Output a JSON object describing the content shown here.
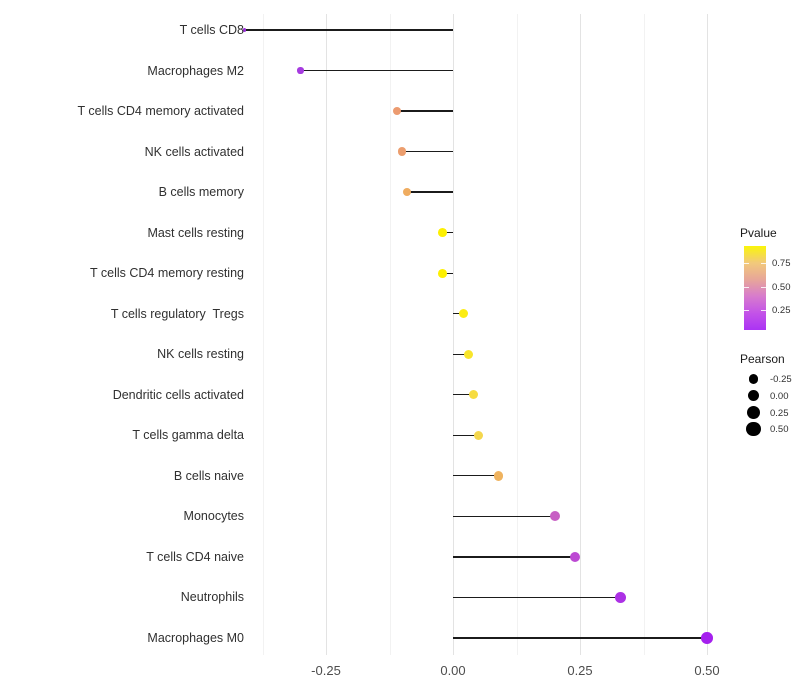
{
  "chart_data": {
    "type": "scatter",
    "subtype": "lollipop",
    "orientation": "horizontal",
    "title": "",
    "xlabel": "",
    "ylabel": "",
    "x_ticks": [
      "-0.25",
      "0.00",
      "0.25",
      "0.50"
    ],
    "x_tick_values": [
      -0.25,
      0.0,
      0.25,
      0.5
    ],
    "xlim": [
      -0.419,
      0.522
    ],
    "grid": "vertical-only",
    "stem_origin": 0.0,
    "categories": [
      "T cells CD8",
      "Macrophages M2",
      "T cells CD4 memory activated",
      "NK cells activated",
      "B cells memory",
      "Mast cells resting",
      "T cells CD4 memory resting",
      "T cells regulatory  Tregs",
      "NK cells resting",
      "Dendritic cells activated",
      "T cells gamma delta",
      "B cells naive",
      "Monocytes",
      "T cells CD4 naive",
      "Neutrophils",
      "Macrophages M0"
    ],
    "series": [
      {
        "name": "Pearson correlation",
        "points": [
          {
            "label": "T cells CD8",
            "pearson": -0.41,
            "dot_color": "#9b2fd9"
          },
          {
            "label": "Macrophages M2",
            "pearson": -0.3,
            "dot_color": "#a63be0"
          },
          {
            "label": "T cells CD4 memory activated",
            "pearson": -0.11,
            "dot_color": "#ec9b70"
          },
          {
            "label": "NK cells activated",
            "pearson": -0.1,
            "dot_color": "#ec9e6e"
          },
          {
            "label": "B cells memory",
            "pearson": -0.09,
            "dot_color": "#efac60"
          },
          {
            "label": "Mast cells resting",
            "pearson": -0.02,
            "dot_color": "#fdf001"
          },
          {
            "label": "T cells CD4 memory resting",
            "pearson": -0.02,
            "dot_color": "#fdf001"
          },
          {
            "label": "T cells regulatory  Tregs",
            "pearson": 0.02,
            "dot_color": "#fbec13"
          },
          {
            "label": "NK cells resting",
            "pearson": 0.03,
            "dot_color": "#f8e52b"
          },
          {
            "label": "Dendritic cells activated",
            "pearson": 0.04,
            "dot_color": "#f6dc41"
          },
          {
            "label": "T cells gamma delta",
            "pearson": 0.05,
            "dot_color": "#f4d74e"
          },
          {
            "label": "B cells naive",
            "pearson": 0.09,
            "dot_color": "#efb35f"
          },
          {
            "label": "Monocytes",
            "pearson": 0.2,
            "dot_color": "#c75fc4"
          },
          {
            "label": "T cells CD4 naive",
            "pearson": 0.24,
            "dot_color": "#bc49d3"
          },
          {
            "label": "Neutrophils",
            "pearson": 0.33,
            "dot_color": "#ac31e5"
          },
          {
            "label": "Macrophages M0",
            "pearson": 0.5,
            "dot_color": "#a520ee"
          }
        ]
      }
    ],
    "legend_position": "right",
    "legends": {
      "pvalue": {
        "title": "Pvalue",
        "tick_labels": [
          "0.75",
          "0.50",
          "0.25"
        ],
        "gradient_top_color": "#faf50a",
        "gradient_mid_color": "#e7a699",
        "gradient_bottom_color": "#ab33f4",
        "gradient_stops": [
          "#faf50a",
          "#f2c97b",
          "#e7a699",
          "#d77bcd",
          "#c353e8",
          "#ab33f4"
        ]
      },
      "pearson_size": {
        "title": "Pearson",
        "tick_labels": [
          "-0.25",
          "0.00",
          "0.25",
          "0.50"
        ],
        "tick_values": [
          -0.25,
          0.0,
          0.25,
          0.5
        ],
        "dot_color": "#000000"
      }
    },
    "stem_color": "#1b1b1b",
    "axis_text_color": "#4d4d4d"
  }
}
